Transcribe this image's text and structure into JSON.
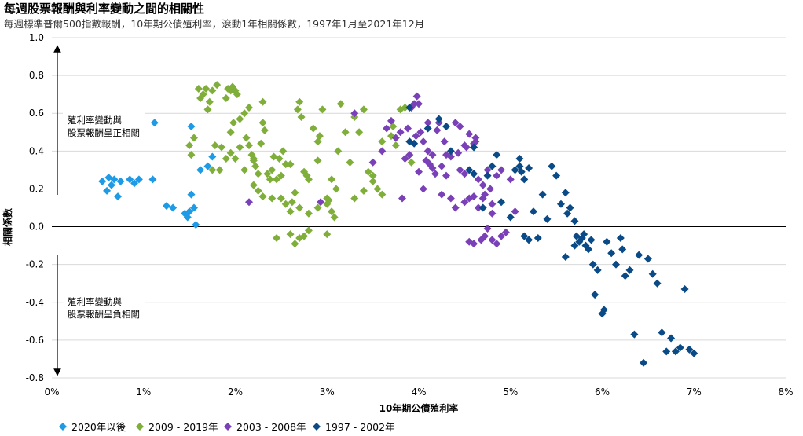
{
  "title": "每週股票報酬與利率變動之間的相關性",
  "subtitle": "每週標準普爾500指數報酬，10年期公債殖利率，滾動1年相關係數，1997年1月至2021年12月",
  "colors": {
    "s2020": "#1e9be6",
    "s2009": "#7fae3a",
    "s2003": "#7a40b8",
    "s1997": "#0a4a86",
    "grid": "#d9d9d9"
  },
  "chart_data": {
    "type": "scatter",
    "xlabel": "10年期公債殖利率",
    "ylabel": "相關係數",
    "xlim": [
      0,
      8
    ],
    "ylim": [
      -0.8,
      1.0
    ],
    "x_ticks": [
      "0%",
      "1%",
      "2%",
      "3%",
      "4%",
      "5%",
      "6%",
      "7%",
      "8%"
    ],
    "y_ticks": [
      "1.0",
      "0.8",
      "0.6",
      "0.4",
      "0.2",
      "0.0",
      "-0.2",
      "-0.4",
      "-0.6",
      "-0.8"
    ],
    "annotations": {
      "positive_line1": "殖利率變動與",
      "positive_line2": "股票報酬呈正相關",
      "negative_line1": "殖利率變動與",
      "negative_line2": "股票報酬呈負相關"
    },
    "series": [
      {
        "name": "2020年以後",
        "color_key": "s2020",
        "points": [
          [
            0.55,
            0.24
          ],
          [
            0.6,
            0.19
          ],
          [
            0.62,
            0.26
          ],
          [
            0.65,
            0.22
          ],
          [
            0.68,
            0.25
          ],
          [
            0.72,
            0.16
          ],
          [
            0.75,
            0.24
          ],
          [
            0.85,
            0.25
          ],
          [
            0.9,
            0.23
          ],
          [
            0.95,
            0.25
          ],
          [
            1.1,
            0.25
          ],
          [
            1.12,
            0.55
          ],
          [
            1.25,
            0.11
          ],
          [
            1.32,
            0.1
          ],
          [
            1.45,
            0.07
          ],
          [
            1.48,
            0.05
          ],
          [
            1.52,
            0.53
          ],
          [
            1.52,
            0.17
          ],
          [
            1.55,
            0.1
          ],
          [
            1.57,
            0.01
          ],
          [
            1.62,
            0.3
          ],
          [
            1.7,
            0.32
          ],
          [
            1.75,
            0.37
          ],
          [
            1.5,
            0.08
          ]
        ]
      },
      {
        "name": "2009 - 2019年",
        "color_key": "s2009",
        "points": [
          [
            1.5,
            0.43
          ],
          [
            1.52,
            0.38
          ],
          [
            1.55,
            0.47
          ],
          [
            1.6,
            0.73
          ],
          [
            1.62,
            0.68
          ],
          [
            1.65,
            0.7
          ],
          [
            1.68,
            0.73
          ],
          [
            1.7,
            0.62
          ],
          [
            1.72,
            0.66
          ],
          [
            1.75,
            0.72
          ],
          [
            1.78,
            0.43
          ],
          [
            1.8,
            0.75
          ],
          [
            1.83,
            0.3
          ],
          [
            1.85,
            0.42
          ],
          [
            1.9,
            0.68
          ],
          [
            1.92,
            0.73
          ],
          [
            1.95,
            0.72
          ],
          [
            1.97,
            0.74
          ],
          [
            2.0,
            0.72
          ],
          [
            2.02,
            0.7
          ],
          [
            1.9,
            0.36
          ],
          [
            1.95,
            0.39
          ],
          [
            1.98,
            0.55
          ],
          [
            2.05,
            0.42
          ],
          [
            2.1,
            0.6
          ],
          [
            2.12,
            0.47
          ],
          [
            2.15,
            0.43
          ],
          [
            2.18,
            0.38
          ],
          [
            2.2,
            0.36
          ],
          [
            2.22,
            0.32
          ],
          [
            2.25,
            0.28
          ],
          [
            2.28,
            0.44
          ],
          [
            2.3,
            0.55
          ],
          [
            2.32,
            0.51
          ],
          [
            2.35,
            0.28
          ],
          [
            2.38,
            0.25
          ],
          [
            2.4,
            0.3
          ],
          [
            2.42,
            0.37
          ],
          [
            2.45,
            0.25
          ],
          [
            2.48,
            0.36
          ],
          [
            2.5,
            0.27
          ],
          [
            2.52,
            0.4
          ],
          [
            2.55,
            0.33
          ],
          [
            2.6,
            0.33
          ],
          [
            2.62,
            0.13
          ],
          [
            2.65,
            0.18
          ],
          [
            2.68,
            0.62
          ],
          [
            2.7,
            0.66
          ],
          [
            2.72,
            0.58
          ],
          [
            2.75,
            0.29
          ],
          [
            2.78,
            0.27
          ],
          [
            2.8,
            0.25
          ],
          [
            2.85,
            0.52
          ],
          [
            2.9,
            0.45
          ],
          [
            2.92,
            0.48
          ],
          [
            2.95,
            0.62
          ],
          [
            3.0,
            0.15
          ],
          [
            3.02,
            0.14
          ],
          [
            3.05,
            0.08
          ],
          [
            3.08,
            0.05
          ],
          [
            3.1,
            0.2
          ],
          [
            3.12,
            0.4
          ],
          [
            3.15,
            0.65
          ],
          [
            3.25,
            0.34
          ],
          [
            3.35,
            0.5
          ],
          [
            3.4,
            0.62
          ],
          [
            3.45,
            0.29
          ],
          [
            3.5,
            0.24
          ],
          [
            3.55,
            0.2
          ],
          [
            3.6,
            0.17
          ],
          [
            3.7,
            0.48
          ],
          [
            3.72,
            0.53
          ],
          [
            3.75,
            0.43
          ],
          [
            3.8,
            0.62
          ],
          [
            3.85,
            0.63
          ],
          [
            2.0,
            0.36
          ],
          [
            2.2,
            0.22
          ],
          [
            2.25,
            0.19
          ],
          [
            2.3,
            0.16
          ],
          [
            2.4,
            0.15
          ],
          [
            2.5,
            0.15
          ],
          [
            2.55,
            0.12
          ],
          [
            2.6,
            0.08
          ],
          [
            2.7,
            0.1
          ],
          [
            2.8,
            0.07
          ],
          [
            2.9,
            0.1
          ],
          [
            2.75,
            -0.05
          ],
          [
            2.65,
            -0.09
          ],
          [
            2.7,
            -0.06
          ],
          [
            2.6,
            -0.04
          ],
          [
            2.8,
            -0.02
          ],
          [
            3.0,
            -0.04
          ],
          [
            2.45,
            -0.06
          ],
          [
            3.3,
            0.58
          ],
          [
            3.2,
            0.5
          ],
          [
            3.5,
            0.27
          ],
          [
            3.6,
            0.45
          ],
          [
            2.15,
            0.63
          ],
          [
            2.3,
            0.66
          ],
          [
            1.95,
            0.5
          ],
          [
            2.05,
            0.57
          ],
          [
            1.75,
            0.3
          ],
          [
            2.1,
            0.3
          ],
          [
            2.2,
            0.35
          ],
          [
            2.9,
            0.35
          ],
          [
            3.05,
            0.25
          ],
          [
            3.4,
            0.19
          ],
          [
            3.3,
            0.15
          ],
          [
            3.0,
            0.12
          ],
          [
            3.88,
            0.37
          ],
          [
            3.92,
            0.34
          ]
        ]
      },
      {
        "name": "2003 - 2008年",
        "color_key": "s2003",
        "points": [
          [
            2.15,
            0.13
          ],
          [
            2.93,
            0.13
          ],
          [
            3.3,
            0.6
          ],
          [
            3.5,
            0.34
          ],
          [
            3.6,
            0.4
          ],
          [
            3.7,
            0.56
          ],
          [
            3.75,
            0.47
          ],
          [
            3.8,
            0.5
          ],
          [
            3.85,
            0.36
          ],
          [
            3.88,
            0.52
          ],
          [
            3.9,
            0.38
          ],
          [
            3.92,
            0.63
          ],
          [
            3.95,
            0.65
          ],
          [
            3.98,
            0.69
          ],
          [
            4.0,
            0.65
          ],
          [
            4.02,
            0.5
          ],
          [
            4.05,
            0.45
          ],
          [
            4.08,
            0.35
          ],
          [
            4.1,
            0.4
          ],
          [
            4.12,
            0.33
          ],
          [
            4.15,
            0.31
          ],
          [
            4.18,
            0.28
          ],
          [
            4.2,
            0.51
          ],
          [
            4.22,
            0.55
          ],
          [
            4.25,
            0.32
          ],
          [
            4.28,
            0.45
          ],
          [
            4.3,
            0.27
          ],
          [
            4.35,
            0.37
          ],
          [
            4.4,
            0.55
          ],
          [
            4.45,
            0.53
          ],
          [
            4.5,
            0.43
          ],
          [
            4.55,
            0.49
          ],
          [
            4.6,
            0.44
          ],
          [
            4.62,
            0.47
          ],
          [
            4.65,
            0.25
          ],
          [
            4.7,
            0.22
          ],
          [
            4.72,
            0.17
          ],
          [
            4.75,
            0.3
          ],
          [
            4.78,
            0.2
          ],
          [
            4.8,
            0.12
          ],
          [
            4.4,
            0.1
          ],
          [
            4.5,
            0.13
          ],
          [
            4.55,
            0.15
          ],
          [
            4.6,
            0.16
          ],
          [
            4.65,
            0.1
          ],
          [
            4.7,
            0.15
          ],
          [
            4.35,
            0.15
          ],
          [
            4.25,
            0.17
          ],
          [
            4.0,
            0.29
          ],
          [
            4.05,
            0.2
          ],
          [
            3.82,
            0.15
          ],
          [
            4.1,
            0.55
          ],
          [
            4.3,
            0.38
          ],
          [
            4.45,
            0.3
          ],
          [
            4.5,
            0.28
          ],
          [
            4.55,
            -0.08
          ],
          [
            4.6,
            -0.09
          ],
          [
            4.68,
            -0.07
          ],
          [
            4.72,
            -0.05
          ],
          [
            4.75,
            -0.01
          ],
          [
            4.8,
            -0.07
          ],
          [
            4.85,
            -0.09
          ],
          [
            4.9,
            -0.05
          ],
          [
            4.95,
            -0.03
          ],
          [
            4.8,
            0.07
          ],
          [
            5.0,
            0.25
          ],
          [
            4.9,
            0.3
          ],
          [
            4.85,
            0.27
          ],
          [
            5.05,
            0.08
          ],
          [
            4.62,
            0.45
          ],
          [
            4.52,
            0.42
          ],
          [
            4.43,
            0.39
          ],
          [
            3.65,
            0.52
          ],
          [
            3.97,
            0.48
          ],
          [
            4.15,
            0.38
          ]
        ]
      },
      {
        "name": "1997 - 2002年",
        "color_key": "s1997",
        "points": [
          [
            3.9,
            0.63
          ],
          [
            3.95,
            0.44
          ],
          [
            4.1,
            0.52
          ],
          [
            4.22,
            0.57
          ],
          [
            4.35,
            0.4
          ],
          [
            4.55,
            0.3
          ],
          [
            4.6,
            0.28
          ],
          [
            4.7,
            0.1
          ],
          [
            4.75,
            0.27
          ],
          [
            4.8,
            0.32
          ],
          [
            4.85,
            0.38
          ],
          [
            4.9,
            0.13
          ],
          [
            5.0,
            0.05
          ],
          [
            5.05,
            0.3
          ],
          [
            5.1,
            0.32
          ],
          [
            5.12,
            0.29
          ],
          [
            5.15,
            0.25
          ],
          [
            5.2,
            0.31
          ],
          [
            5.1,
            0.36
          ],
          [
            5.15,
            -0.05
          ],
          [
            5.2,
            -0.07
          ],
          [
            5.25,
            0.08
          ],
          [
            5.3,
            -0.06
          ],
          [
            5.35,
            0.17
          ],
          [
            5.4,
            0.04
          ],
          [
            5.45,
            0.32
          ],
          [
            5.5,
            0.27
          ],
          [
            5.55,
            0.12
          ],
          [
            5.6,
            0.18
          ],
          [
            5.62,
            0.07
          ],
          [
            5.65,
            0.1
          ],
          [
            5.7,
            0.03
          ],
          [
            5.72,
            -0.05
          ],
          [
            5.75,
            -0.08
          ],
          [
            5.78,
            -0.06
          ],
          [
            5.8,
            -0.04
          ],
          [
            5.82,
            -0.1
          ],
          [
            5.85,
            -0.12
          ],
          [
            5.88,
            -0.07
          ],
          [
            5.9,
            -0.2
          ],
          [
            5.92,
            -0.36
          ],
          [
            5.95,
            -0.23
          ],
          [
            6.0,
            -0.46
          ],
          [
            6.02,
            -0.44
          ],
          [
            6.05,
            -0.08
          ],
          [
            6.1,
            -0.14
          ],
          [
            6.15,
            -0.2
          ],
          [
            6.2,
            -0.06
          ],
          [
            6.22,
            -0.12
          ],
          [
            6.25,
            -0.26
          ],
          [
            6.3,
            -0.23
          ],
          [
            6.35,
            -0.57
          ],
          [
            6.4,
            -0.15
          ],
          [
            6.45,
            -0.72
          ],
          [
            6.5,
            -0.17
          ],
          [
            6.55,
            -0.25
          ],
          [
            6.6,
            -0.3
          ],
          [
            6.65,
            -0.56
          ],
          [
            6.7,
            -0.66
          ],
          [
            6.75,
            -0.59
          ],
          [
            6.8,
            -0.66
          ],
          [
            6.85,
            -0.64
          ],
          [
            6.9,
            -0.33
          ],
          [
            6.95,
            -0.65
          ],
          [
            7.0,
            -0.67
          ],
          [
            5.6,
            -0.16
          ],
          [
            5.7,
            -0.1
          ],
          [
            4.6,
            0.42
          ],
          [
            3.9,
            0.45
          ],
          [
            4.3,
            0.53
          ]
        ]
      }
    ]
  }
}
